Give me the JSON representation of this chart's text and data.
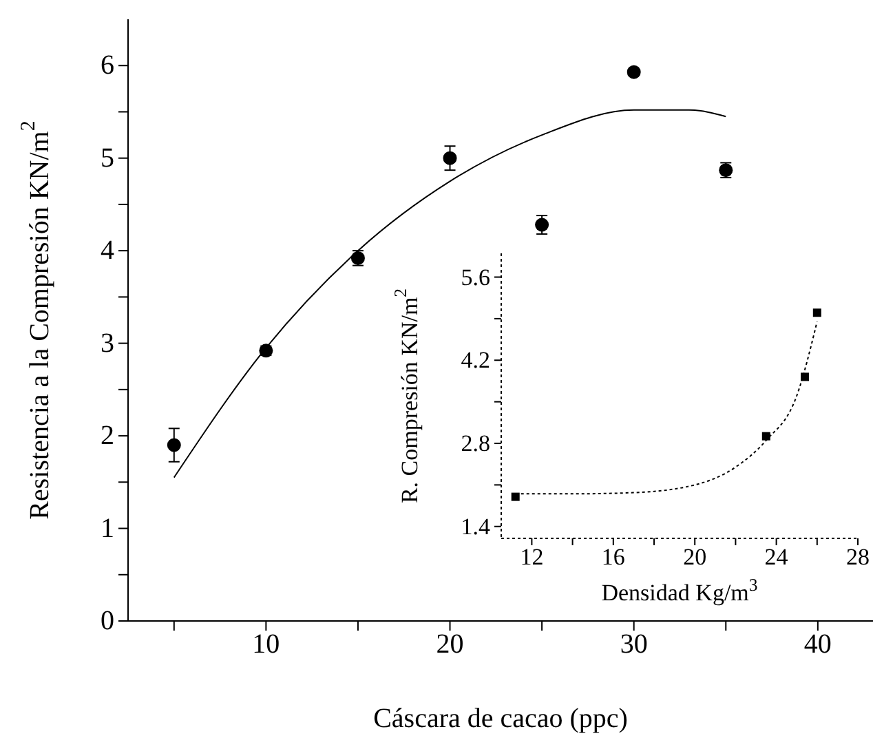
{
  "chart_data": [
    {
      "type": "scatter",
      "xlabel": "Cáscara de cacao (ppc)",
      "ylabel": "Resistencia a la Compresión KN/m$^{2}$",
      "xlim": [
        2.5,
        43
      ],
      "ylim": [
        0,
        6.5
      ],
      "xticks": [
        {
          "value": 5,
          "label": null
        },
        10,
        {
          "value": 15,
          "label": null
        },
        20,
        {
          "value": 25,
          "label": null
        },
        30,
        {
          "value": 35,
          "label": null
        },
        40
      ],
      "yticks": [
        0,
        {
          "value": 0.5,
          "label": null
        },
        1,
        {
          "value": 1.5,
          "label": null
        },
        2,
        {
          "value": 2.5,
          "label": null
        },
        3,
        {
          "value": 3.5,
          "label": null
        },
        4,
        {
          "value": 4.5,
          "label": null
        },
        5,
        {
          "value": 5.5,
          "label": null
        },
        6
      ],
      "marker": "circle",
      "series": [
        {
          "type": "scatter",
          "color": "#000000",
          "x": [
            5,
            10,
            15,
            20,
            25,
            30,
            35
          ],
          "values": [
            1.9,
            2.92,
            3.92,
            5.0,
            4.28,
            5.93,
            4.87
          ],
          "errors": [
            0.18,
            0.05,
            0.08,
            0.13,
            0.1,
            null,
            0.08
          ]
        },
        {
          "type": "line",
          "marker": "none",
          "color": "#000000",
          "x": [
            5,
            10,
            15,
            20,
            25,
            30,
            33,
            35
          ],
          "values": [
            1.55,
            2.95,
            4.0,
            4.75,
            5.25,
            5.52,
            5.52,
            5.45
          ]
        }
      ]
    },
    {
      "type": "scatter",
      "xlabel": "Densidad Kg/m$^{3}$",
      "ylabel": "R. Compresión KN/m$^{2}$",
      "xlim": [
        10.5,
        28
      ],
      "ylim": [
        1.2,
        6.0
      ],
      "xticks": [
        12,
        {
          "value": 14,
          "label": null
        },
        16,
        {
          "value": 18,
          "label": null
        },
        20,
        {
          "value": 22,
          "label": null
        },
        24,
        {
          "value": 26,
          "label": null
        },
        28
      ],
      "yticks": [
        1.4,
        {
          "value": 2.1,
          "label": null
        },
        2.8,
        {
          "value": 3.5,
          "label": null
        },
        4.2,
        {
          "value": 4.9,
          "label": null
        },
        5.6
      ],
      "marker": "square",
      "series": [
        {
          "type": "scatter",
          "color": "#000000",
          "x": [
            11.2,
            23.5,
            25.4,
            26.0
          ],
          "values": [
            1.9,
            2.92,
            3.92,
            5.0
          ]
        },
        {
          "type": "line",
          "marker": "none",
          "color": "#000000",
          "line_style": "dotted",
          "x": [
            11.2,
            14,
            17,
            20,
            22,
            23.5,
            25,
            26
          ],
          "values": [
            1.95,
            1.95,
            1.97,
            2.1,
            2.4,
            2.85,
            3.6,
            4.85
          ]
        }
      ]
    }
  ]
}
